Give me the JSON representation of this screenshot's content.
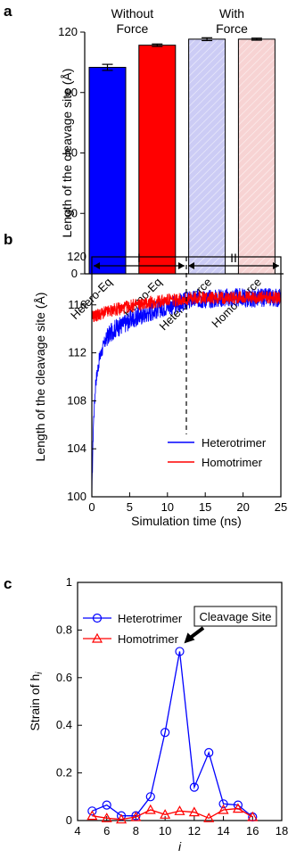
{
  "chart_data": [
    {
      "panel": "a",
      "type": "bar",
      "ylabel": "Length of the cleavage site (Å)",
      "ylim": [
        0,
        120
      ],
      "yticks": [
        "0",
        "30",
        "60",
        "90",
        "120"
      ],
      "categories": [
        "Hetero-Eq",
        "Homo-Eq",
        "Hetero-Force",
        "Homo-Force"
      ],
      "values": [
        102.5,
        113.5,
        116.5,
        116.5
      ],
      "errors": [
        1.5,
        0.6,
        0.7,
        0.5
      ],
      "colors": [
        "#0000ff",
        "#ff0000",
        "#ccccf5",
        "#f7d3d3"
      ],
      "hatched": [
        false,
        false,
        true,
        true
      ],
      "group_labels": [
        "Without Force",
        "With Force"
      ],
      "grid": false
    },
    {
      "panel": "b",
      "type": "line",
      "xlabel": "Simulation time (ns)",
      "ylabel": "Length of the cleavage site (Å)",
      "xlim": [
        0,
        25
      ],
      "ylim": [
        100,
        120
      ],
      "xticks": [
        "0",
        "5",
        "10",
        "15",
        "20",
        "25"
      ],
      "yticks": [
        "100",
        "104",
        "108",
        "112",
        "116",
        "120"
      ],
      "regions": [
        "I",
        "II"
      ],
      "divider_x": 12.5,
      "series": [
        {
          "name": "Heterotrimer",
          "color": "#0000ff",
          "x": [
            0,
            0.2,
            0.5,
            1,
            1.5,
            2,
            3,
            4,
            5,
            6,
            7,
            8,
            9,
            10,
            11,
            12,
            12.5,
            13,
            14,
            15,
            16,
            17,
            18,
            19,
            20,
            21,
            22,
            23,
            24,
            25
          ],
          "values": [
            100,
            106,
            109.5,
            111.5,
            112.5,
            113.3,
            114,
            114.3,
            114.7,
            115,
            115.2,
            115.5,
            115.7,
            115.9,
            116,
            116.2,
            116.3,
            116.4,
            116.5,
            116.5,
            116.5,
            116.6,
            116.6,
            116.6,
            116.6,
            116.5,
            116.6,
            116.6,
            116.6,
            116.6
          ]
        },
        {
          "name": "Homotrimer",
          "color": "#ff0000",
          "x": [
            0,
            1,
            2,
            3,
            4,
            5,
            6,
            7,
            8,
            9,
            10,
            11,
            12,
            13,
            14,
            15,
            16,
            17,
            18,
            19,
            20,
            21,
            22,
            23,
            24,
            25
          ],
          "values": [
            115,
            115.2,
            115.4,
            115.6,
            115.7,
            115.9,
            116,
            116.1,
            116.2,
            116.3,
            116.4,
            116.4,
            116.5,
            116.5,
            116.6,
            116.6,
            116.6,
            116.6,
            116.6,
            116.6,
            116.6,
            116.6,
            116.6,
            116.6,
            116.6,
            116.6
          ]
        }
      ],
      "legend": "bottom-right",
      "grid": false
    },
    {
      "panel": "c",
      "type": "line",
      "xlabel": "i",
      "ylabel": "Strain of h",
      "ylabel_sub": "i",
      "xlim": [
        4,
        18
      ],
      "ylim": [
        0,
        1
      ],
      "xticks": [
        "4",
        "6",
        "8",
        "10",
        "12",
        "14",
        "16",
        "18"
      ],
      "yticks": [
        "0",
        "0.2",
        "0.4",
        "0.6",
        "0.8",
        "1"
      ],
      "series": [
        {
          "name": "Heterotrimer",
          "color": "#0000ff",
          "marker": "circle",
          "x": [
            5,
            6,
            7,
            8,
            9,
            10,
            11,
            12,
            13,
            14,
            15,
            16
          ],
          "values": [
            0.04,
            0.065,
            0.02,
            0.02,
            0.1,
            0.37,
            0.71,
            0.14,
            0.285,
            0.07,
            0.065,
            0.015
          ]
        },
        {
          "name": "Homotrimer",
          "color": "#ff0000",
          "marker": "triangle",
          "x": [
            5,
            6,
            7,
            8,
            9,
            10,
            11,
            12,
            13,
            14,
            15,
            16
          ],
          "values": [
            0.02,
            0.01,
            0.005,
            0.015,
            0.045,
            0.025,
            0.04,
            0.035,
            0.01,
            0.045,
            0.05,
            0.015
          ]
        }
      ],
      "annotation": {
        "text": "Cleavage Site",
        "target_x": 11,
        "target_y": 0.71
      },
      "legend": "top-left",
      "grid": false
    }
  ]
}
